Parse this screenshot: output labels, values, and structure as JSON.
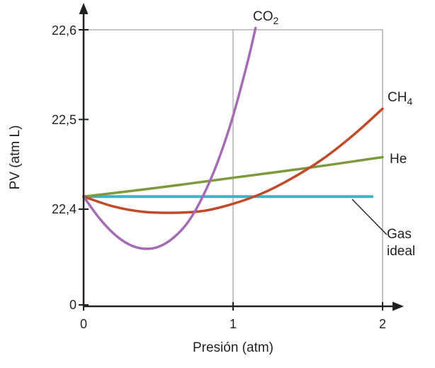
{
  "chart_data": {
    "type": "line",
    "title": "",
    "xlabel": "Presión (atm)",
    "ylabel": "PV (atm L)",
    "x_ticks": [
      "0",
      "1",
      "2"
    ],
    "y_ticks": [
      "22,6",
      "22,5",
      "22,4",
      "0"
    ],
    "xlim": [
      0,
      2
    ],
    "ylim": [
      22.35,
      22.6
    ],
    "y_axis_break": true,
    "grid": {
      "vertical_gridline_x": 1,
      "box_top_y": 22.6,
      "box_right_x": 2
    },
    "axis_color": "#231f20",
    "grid_color": "#a3a3a3",
    "series": [
      {
        "id": "gas-ideal",
        "name": "Gas ideal",
        "color": "#3eb4c6",
        "width": 4,
        "points": [
          [
            0,
            22.414
          ],
          [
            1.93,
            22.414
          ]
        ]
      },
      {
        "id": "he",
        "name": "He",
        "color": "#7d9a3c",
        "width": 3.5,
        "points": [
          [
            0,
            22.414
          ],
          [
            0.5,
            22.424
          ],
          [
            1.0,
            22.435
          ],
          [
            1.5,
            22.446
          ],
          [
            2.0,
            22.458
          ]
        ]
      },
      {
        "id": "ch4",
        "name": "CH4",
        "color": "#c14a28",
        "width": 3.5,
        "points": [
          [
            0,
            22.414
          ],
          [
            0.2,
            22.403
          ],
          [
            0.4,
            22.397
          ],
          [
            0.6,
            22.396
          ],
          [
            0.8,
            22.398
          ],
          [
            1.0,
            22.406
          ],
          [
            1.2,
            22.418
          ],
          [
            1.4,
            22.435
          ],
          [
            1.6,
            22.456
          ],
          [
            1.8,
            22.482
          ],
          [
            2.0,
            22.512
          ]
        ]
      },
      {
        "id": "co2",
        "name": "CO2",
        "color": "#a66bb5",
        "width": 3.5,
        "points": [
          [
            0,
            22.414
          ],
          [
            0.1,
            22.391
          ],
          [
            0.2,
            22.373
          ],
          [
            0.3,
            22.361
          ],
          [
            0.4,
            22.356
          ],
          [
            0.5,
            22.358
          ],
          [
            0.6,
            22.368
          ],
          [
            0.7,
            22.386
          ],
          [
            0.8,
            22.415
          ],
          [
            0.9,
            22.454
          ],
          [
            1.0,
            22.504
          ],
          [
            1.1,
            22.566
          ],
          [
            1.15,
            22.602
          ]
        ]
      }
    ],
    "labels": {
      "co2_main": "CO",
      "co2_sub": "2",
      "ch4_main": "CH",
      "ch4_sub": "4",
      "he": "He",
      "ideal_line1": "Gas",
      "ideal_line2": "ideal"
    }
  }
}
